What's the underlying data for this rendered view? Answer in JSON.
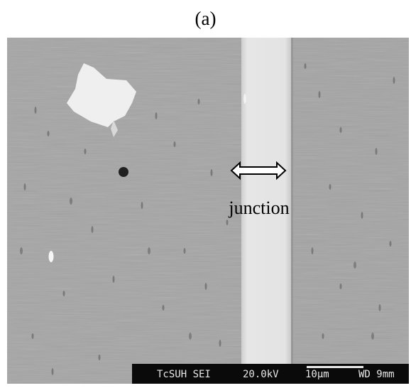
{
  "figure": {
    "panel_label": "(a)",
    "annotation": "junction"
  },
  "sem": {
    "instrument_id": "TcSUH SEI",
    "voltage": "20.0kV",
    "scale_label": "10μm",
    "working_distance": "WD 9mm"
  },
  "colors": {
    "background_gray": "#a6a6a6",
    "junction_band": "#e2e2e2",
    "particle": "#f2f2f2",
    "databar": "#0a0a0a",
    "databar_text": "#e8e8e8"
  }
}
